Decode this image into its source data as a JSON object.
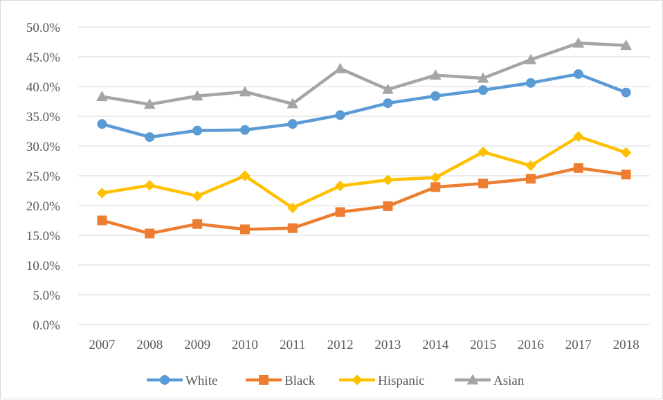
{
  "chart_data": {
    "type": "line",
    "title": "",
    "xlabel": "",
    "ylabel": "",
    "categories": [
      "2007",
      "2008",
      "2009",
      "2010",
      "2011",
      "2012",
      "2013",
      "2014",
      "2015",
      "2016",
      "2017",
      "2018"
    ],
    "ylim": [
      0,
      50
    ],
    "yticks": [
      "0.0%",
      "5.0%",
      "10.0%",
      "15.0%",
      "20.0%",
      "25.0%",
      "30.0%",
      "35.0%",
      "40.0%",
      "45.0%",
      "50.0%"
    ],
    "grid": true,
    "legend_position": "bottom",
    "series": [
      {
        "name": "White",
        "color": "#5b9bd5",
        "marker": "circle",
        "values": [
          33.7,
          31.5,
          32.6,
          32.7,
          33.7,
          35.2,
          37.2,
          38.4,
          39.4,
          40.6,
          42.1,
          39.0
        ]
      },
      {
        "name": "Black",
        "color": "#ed7d31",
        "marker": "square",
        "values": [
          17.5,
          15.3,
          16.9,
          16.0,
          16.2,
          18.9,
          19.9,
          23.1,
          23.7,
          24.5,
          26.3,
          25.2
        ]
      },
      {
        "name": "Hispanic",
        "color": "#ffc000",
        "marker": "diamond",
        "values": [
          22.1,
          23.4,
          21.6,
          25.0,
          19.6,
          23.3,
          24.3,
          24.7,
          29.0,
          26.7,
          31.6,
          28.9
        ]
      },
      {
        "name": "Asian",
        "color": "#a5a5a5",
        "marker": "triangle",
        "values": [
          38.3,
          37.0,
          38.4,
          39.1,
          37.1,
          43.0,
          39.5,
          41.9,
          41.4,
          44.5,
          47.3,
          46.9
        ]
      }
    ]
  }
}
